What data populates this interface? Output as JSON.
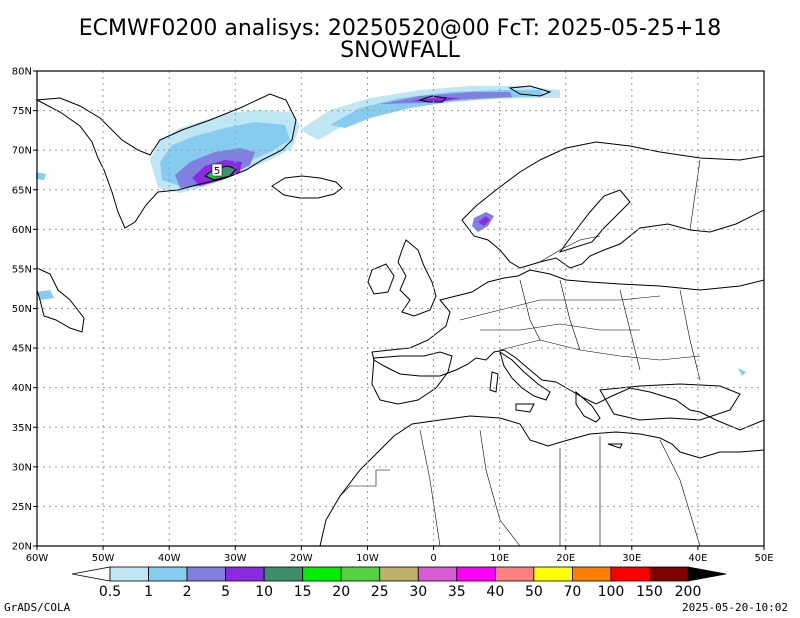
{
  "title": {
    "line1": "ECMWF0200 analisys: 20250520@00 FcT: 2025-05-25+18",
    "line2": "SNOWFALL"
  },
  "map": {
    "lon_range": [
      -60,
      50
    ],
    "lat_range": [
      20,
      80
    ],
    "lat_ticks": [
      "80N",
      "75N",
      "70N",
      "65N",
      "60N",
      "55N",
      "50N",
      "45N",
      "40N",
      "35N",
      "30N",
      "25N",
      "20N"
    ],
    "lon_ticks": [
      "60W",
      "50W",
      "40W",
      "30W",
      "20W",
      "10W",
      "0",
      "10E",
      "20E",
      "30E",
      "40E",
      "50E"
    ],
    "contour_label": "5",
    "grid_color": "#999999"
  },
  "legend": {
    "labels": [
      "0.5",
      "1",
      "2",
      "5",
      "10",
      "15",
      "20",
      "25",
      "30",
      "35",
      "40",
      "50",
      "70",
      "100",
      "150",
      "200"
    ],
    "colors": [
      "#ffffff",
      "#bfe6f5",
      "#86ccf0",
      "#8080e0",
      "#8a2be2",
      "#3f8f6f",
      "#00ee00",
      "#55d040",
      "#bdb06a",
      "#d85ad0",
      "#ff00ff",
      "#ff8080",
      "#ffff00",
      "#ff8000",
      "#ff0000",
      "#800000",
      "#000000"
    ]
  },
  "footer": {
    "credit": "GrADS/COLA",
    "timestamp": "2025-05-20-10:02"
  }
}
